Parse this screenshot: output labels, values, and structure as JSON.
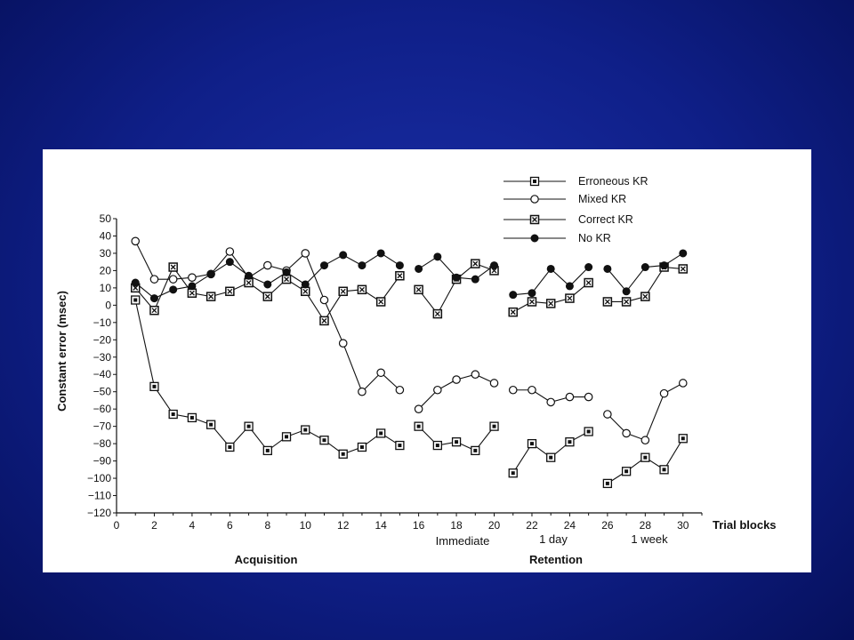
{
  "chart_data": {
    "type": "line",
    "xlabel": "Trial blocks",
    "ylabel": "Constant error (msec)",
    "xlim": [
      0,
      31
    ],
    "ylim": [
      -120,
      50
    ],
    "x_ticks": [
      "0",
      "2",
      "4",
      "6",
      "8",
      "10",
      "12",
      "14",
      "16",
      "18",
      "20",
      "22",
      "24",
      "26",
      "28",
      "30"
    ],
    "y_ticks": [
      "50",
      "40",
      "30",
      "20",
      "10",
      "0",
      "−10",
      "−20",
      "−30",
      "−40",
      "−50",
      "−60",
      "−70",
      "−80",
      "−90",
      "−100",
      "−110",
      "−120"
    ],
    "phase_labels": {
      "acquisition": "Acquisition",
      "retention": "Retention",
      "immediate": "Immediate",
      "one_day": "1 day",
      "one_week": "1 week"
    },
    "segments": [
      [
        1,
        15
      ],
      [
        16,
        20
      ],
      [
        21,
        25
      ],
      [
        26,
        30
      ]
    ],
    "series": [
      {
        "name": "Erroneous KR",
        "marker": "square-dot",
        "x": [
          1,
          2,
          3,
          4,
          5,
          6,
          7,
          8,
          9,
          10,
          11,
          12,
          13,
          14,
          15,
          16,
          17,
          18,
          19,
          20,
          21,
          22,
          23,
          24,
          25,
          26,
          27,
          28,
          29,
          30
        ],
        "values": [
          3,
          -47,
          -63,
          -65,
          -69,
          -82,
          -70,
          -84,
          -76,
          -72,
          -78,
          -86,
          -82,
          -74,
          -81,
          -70,
          -81,
          -79,
          -84,
          -70,
          -97,
          -80,
          -88,
          -79,
          -73,
          -103,
          -96,
          -88,
          -95,
          -77
        ]
      },
      {
        "name": "Mixed KR",
        "marker": "open-circle",
        "x": [
          1,
          2,
          3,
          4,
          5,
          6,
          7,
          8,
          9,
          10,
          11,
          12,
          13,
          14,
          15,
          16,
          17,
          18,
          19,
          20,
          21,
          22,
          23,
          24,
          25,
          26,
          27,
          28,
          29,
          30
        ],
        "values": [
          37,
          15,
          15,
          16,
          18,
          31,
          16,
          23,
          20,
          30,
          3,
          -22,
          -50,
          -39,
          -49,
          -60,
          -49,
          -43,
          -40,
          -45,
          -49,
          -49,
          -56,
          -53,
          -53,
          -63,
          -74,
          -78,
          -51,
          -45
        ]
      },
      {
        "name": "Correct KR",
        "marker": "square-x",
        "x": [
          1,
          2,
          3,
          4,
          5,
          6,
          7,
          8,
          9,
          10,
          11,
          12,
          13,
          14,
          15,
          16,
          17,
          18,
          19,
          20,
          21,
          22,
          23,
          24,
          25,
          26,
          27,
          28,
          29,
          30
        ],
        "values": [
          10,
          -3,
          22,
          7,
          5,
          8,
          13,
          5,
          15,
          8,
          -9,
          8,
          9,
          2,
          17,
          9,
          -5,
          15,
          24,
          20,
          -4,
          2,
          1,
          4,
          13,
          2,
          2,
          5,
          22,
          21
        ]
      },
      {
        "name": "No KR",
        "marker": "filled-circle",
        "x": [
          1,
          2,
          3,
          4,
          5,
          6,
          7,
          8,
          9,
          10,
          11,
          12,
          13,
          14,
          15,
          16,
          17,
          18,
          19,
          20,
          21,
          22,
          23,
          24,
          25,
          26,
          27,
          28,
          29,
          30
        ],
        "values": [
          13,
          4,
          9,
          11,
          18,
          25,
          17,
          12,
          19,
          12,
          23,
          29,
          23,
          30,
          23,
          21,
          28,
          16,
          15,
          23,
          6,
          7,
          21,
          11,
          22,
          21,
          8,
          22,
          23,
          30
        ]
      }
    ]
  }
}
